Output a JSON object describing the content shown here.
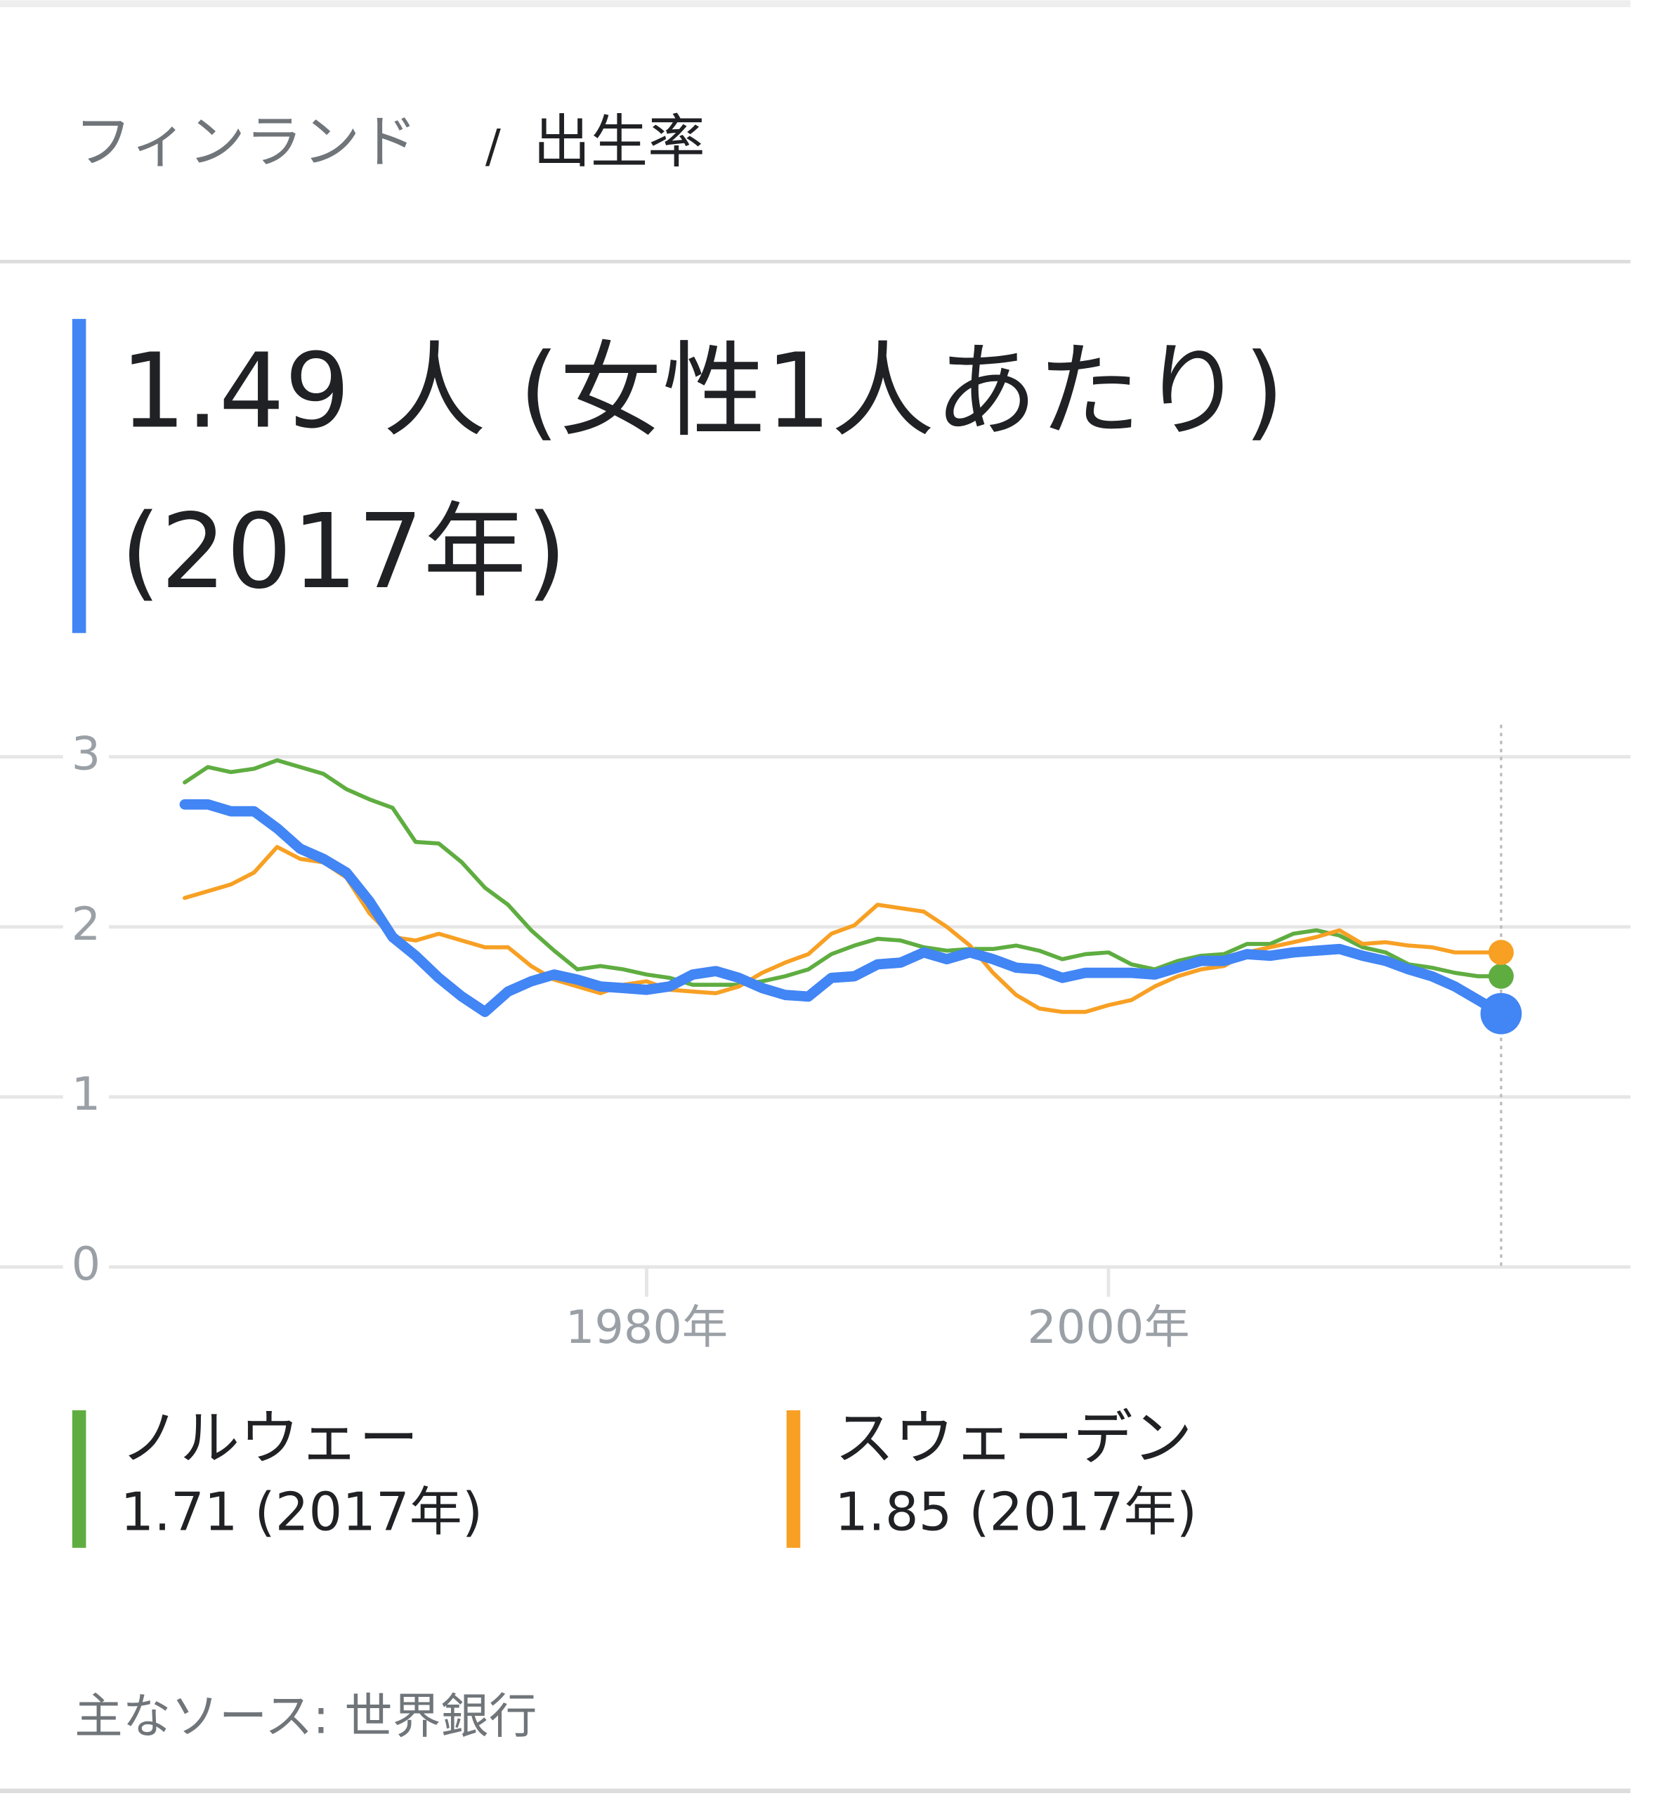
{
  "header": {
    "separator": "/",
    "metric": "出生率",
    "headline": "1.49 人 (女性1人あたり) (2017年)"
  },
  "chart_data": {
    "type": "line",
    "x": [
      1960,
      1961,
      1962,
      1963,
      1964,
      1965,
      1966,
      1967,
      1968,
      1969,
      1970,
      1971,
      1972,
      1973,
      1974,
      1975,
      1976,
      1977,
      1978,
      1979,
      1980,
      1981,
      1982,
      1983,
      1984,
      1985,
      1986,
      1987,
      1988,
      1989,
      1990,
      1991,
      1992,
      1993,
      1994,
      1995,
      1996,
      1997,
      1998,
      1999,
      2000,
      2001,
      2002,
      2003,
      2004,
      2005,
      2006,
      2007,
      2008,
      2009,
      2010,
      2011,
      2012,
      2013,
      2014,
      2015,
      2016,
      2017
    ],
    "xlim": [
      1952,
      2022.6
    ],
    "xticks": [
      {
        "value": 1980,
        "label": "1980年"
      },
      {
        "value": 2000,
        "label": "2000年"
      }
    ],
    "ylim": [
      0,
      3
    ],
    "yticks": [
      0,
      1,
      2,
      3
    ],
    "grid": true,
    "series": [
      {
        "name": "ノルウェー",
        "color": "#5fad41",
        "legend_label": "1.71 (2017年)",
        "values": [
          2.85,
          2.94,
          2.91,
          2.93,
          2.98,
          2.94,
          2.9,
          2.81,
          2.75,
          2.7,
          2.5,
          2.49,
          2.38,
          2.23,
          2.13,
          1.98,
          1.86,
          1.75,
          1.77,
          1.75,
          1.72,
          1.7,
          1.66,
          1.66,
          1.66,
          1.68,
          1.71,
          1.75,
          1.84,
          1.89,
          1.93,
          1.92,
          1.88,
          1.86,
          1.87,
          1.87,
          1.89,
          1.86,
          1.81,
          1.84,
          1.85,
          1.78,
          1.75,
          1.8,
          1.83,
          1.84,
          1.9,
          1.9,
          1.96,
          1.98,
          1.95,
          1.88,
          1.85,
          1.78,
          1.76,
          1.73,
          1.71,
          1.71
        ]
      },
      {
        "name": "スウェーデン",
        "color": "#f7a024",
        "legend_label": "1.85 (2017年)",
        "values": [
          2.17,
          2.21,
          2.25,
          2.32,
          2.47,
          2.4,
          2.38,
          2.29,
          2.08,
          1.94,
          1.92,
          1.96,
          1.92,
          1.88,
          1.88,
          1.77,
          1.69,
          1.65,
          1.61,
          1.66,
          1.68,
          1.63,
          1.62,
          1.61,
          1.65,
          1.73,
          1.79,
          1.84,
          1.96,
          2.01,
          2.13,
          2.11,
          2.09,
          2.0,
          1.89,
          1.73,
          1.6,
          1.52,
          1.5,
          1.5,
          1.54,
          1.57,
          1.65,
          1.71,
          1.75,
          1.77,
          1.85,
          1.88,
          1.91,
          1.94,
          1.98,
          1.9,
          1.91,
          1.89,
          1.88,
          1.85,
          1.85,
          1.85
        ]
      },
      {
        "name": "フィンランド",
        "color": "#4285f4",
        "values": [
          2.72,
          2.72,
          2.68,
          2.68,
          2.58,
          2.46,
          2.4,
          2.32,
          2.15,
          1.94,
          1.83,
          1.7,
          1.59,
          1.5,
          1.62,
          1.68,
          1.72,
          1.69,
          1.65,
          1.64,
          1.63,
          1.65,
          1.72,
          1.74,
          1.7,
          1.64,
          1.6,
          1.59,
          1.7,
          1.71,
          1.78,
          1.79,
          1.85,
          1.81,
          1.85,
          1.81,
          1.76,
          1.75,
          1.7,
          1.73,
          1.73,
          1.73,
          1.72,
          1.76,
          1.8,
          1.8,
          1.84,
          1.83,
          1.85,
          1.86,
          1.87,
          1.83,
          1.8,
          1.75,
          1.71,
          1.65,
          1.57,
          1.49
        ]
      }
    ]
  },
  "footer": {
    "source": "主なソース: 世界銀行"
  }
}
